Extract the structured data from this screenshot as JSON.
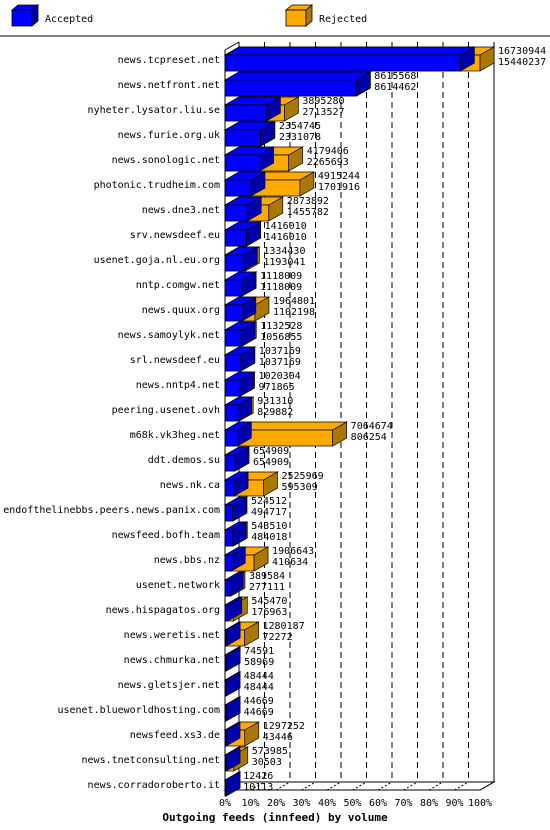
{
  "chart_data": {
    "type": "bar",
    "orientation": "horizontal",
    "stacking": "overlay",
    "title": "Outgoing feeds (innfeed) by volume",
    "xlim": [
      0,
      100
    ],
    "x_tick_labels": [
      "0%",
      "10%",
      "20%",
      "30%",
      "40%",
      "50%",
      "60%",
      "70%",
      "80%",
      "90%",
      "100%"
    ],
    "grid": true,
    "legend_position": "top",
    "series": [
      {
        "name": "Accepted",
        "color": "#0000ff",
        "side_color": "#0000aa"
      },
      {
        "name": "Rejected",
        "color": "#ffaa00",
        "side_color": "#aa7700"
      }
    ],
    "categories": [
      "news.tcpreset.net",
      "news.netfront.net",
      "nyheter.lysator.liu.se",
      "news.furie.org.uk",
      "news.sonologic.net",
      "photonic.trudheim.com",
      "news.dne3.net",
      "srv.newsdeef.eu",
      "usenet.goja.nl.eu.org",
      "nntp.comgw.net",
      "news.quux.org",
      "news.samoylyk.net",
      "srl.newsdeef.eu",
      "news.nntp4.net",
      "peering.usenet.ovh",
      "m68k.vk3heg.net",
      "ddt.demos.su",
      "news.nk.ca",
      "endofthelinebbs.peers.news.panix.com",
      "newsfeed.bofh.team",
      "news.bbs.nz",
      "usenet.network",
      "news.hispagatos.org",
      "news.weretis.net",
      "news.chmurka.net",
      "news.gletsjer.net",
      "usenet.blueworldhosting.com",
      "newsfeed.xs3.de",
      "news.tnetconsulting.net",
      "news.corradoroberto.it"
    ],
    "offered": [
      "16730944",
      "8615568",
      "3895280",
      "2354745",
      "4179406",
      "4915244",
      "2873892",
      "1416010",
      "1334430",
      "1118009",
      "1964801",
      "1132528",
      "1037169",
      "1020304",
      "931310",
      "7064674",
      "654909",
      "2525969",
      "524512",
      "543510",
      "1906643",
      "389584",
      "545470",
      "1280187",
      "74591",
      "48444",
      "44669",
      "1297252",
      "573985",
      "12426"
    ],
    "accepted": [
      "15440237",
      "8614462",
      "2713527",
      "2331078",
      "2265693",
      "1701916",
      "1455782",
      "1416010",
      "1193041",
      "1118009",
      "1102198",
      "1056855",
      "1037169",
      "971865",
      "829882",
      "806254",
      "654909",
      "595309",
      "494717",
      "484018",
      "410634",
      "277111",
      "176963",
      "72272",
      "58969",
      "48444",
      "44669",
      "43446",
      "30503",
      "10113"
    ]
  }
}
